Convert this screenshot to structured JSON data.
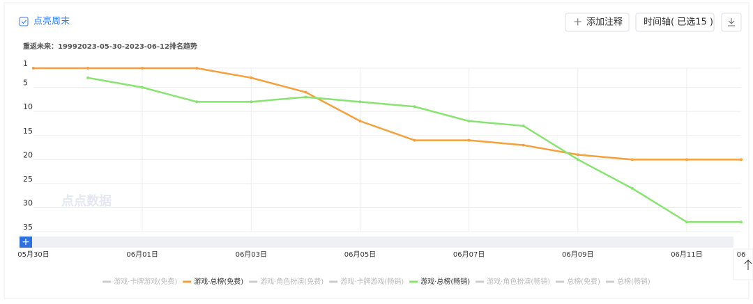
{
  "ui": {
    "toggle": "点亮周末",
    "add_note": "添加注释",
    "timeline": "时间轴( 已选15 )",
    "watermark": "点点数据"
  },
  "chart_data": {
    "type": "line",
    "subtitle": "重返未来：19992023-05-30-2023-06-12排名趋势",
    "categories": [
      "05月30日",
      null,
      "06月01日",
      null,
      "06月03日",
      null,
      "06月05日",
      null,
      "06月07日",
      null,
      "06月09日",
      null,
      "06月11日",
      "06"
    ],
    "series": [
      {
        "name": "游戏·总榜(免费)",
        "color": "#f5a03a",
        "values": [
          1,
          1,
          1,
          1,
          3,
          6,
          12,
          16,
          16,
          17,
          19,
          20,
          20,
          20
        ]
      },
      {
        "name": "游戏·总榜(畅销)",
        "color": "#86e46f",
        "values": [
          null,
          3,
          5,
          8,
          8,
          7,
          8,
          9,
          12,
          13,
          20,
          26,
          33,
          33
        ]
      }
    ],
    "inactive_legend": [
      "游戏·卡牌游戏(免费)",
      "游戏·角色扮演(免费)",
      "游戏·卡牌游戏(畅销)",
      "游戏·角色扮演(畅销)",
      "总榜(免费)",
      "总榜(畅销)"
    ],
    "legend_order": [
      "游戏·卡牌游戏(免费)",
      "游戏·总榜(免费)",
      "游戏·角色扮演(免费)",
      "游戏·卡牌游戏(畅销)",
      "游戏·总榜(畅销)",
      "游戏·角色扮演(畅销)",
      "总榜(免费)",
      "总榜(畅销)"
    ],
    "ylim": [
      1,
      35
    ],
    "y_inverted": true,
    "yticks": [
      1,
      5,
      10,
      15,
      20,
      25,
      30,
      35
    ],
    "grid": true
  }
}
